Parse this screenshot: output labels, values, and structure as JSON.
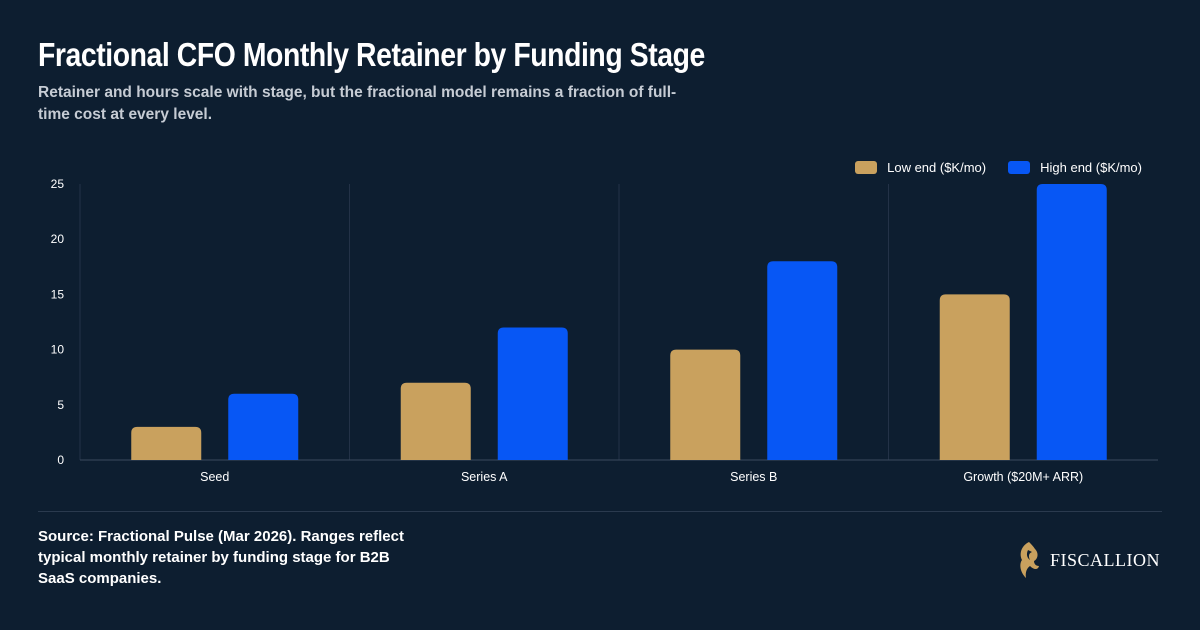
{
  "title": "Fractional CFO Monthly Retainer by Funding Stage",
  "subtitle": "Retainer and hours scale with stage, but the fractional model remains a fraction of full-time cost at every level.",
  "source": "Source: Fractional Pulse (Mar 2026). Ranges reflect typical monthly retainer by funding stage for B2B SaaS companies.",
  "brand": {
    "name": "FISCALLION",
    "icon": "lion-head-logo"
  },
  "colors": {
    "background": "#0d1e30",
    "low": "#c9a15e",
    "high": "#0757f5",
    "grid": "#233247",
    "axis_text": "#ffffff"
  },
  "chart_data": {
    "type": "bar",
    "categories": [
      "Seed",
      "Series A",
      "Series B",
      "Growth ($20M+ ARR)"
    ],
    "series": [
      {
        "name": "Low end ($K/mo)",
        "values": [
          3,
          7,
          10,
          15
        ]
      },
      {
        "name": "High end ($K/mo)",
        "values": [
          6,
          12,
          18,
          25
        ]
      }
    ],
    "yticks": [
      0,
      5,
      10,
      15,
      20,
      25
    ],
    "ylim": [
      0,
      25
    ],
    "grid": "vertical category separators",
    "legend_position": "top-right"
  }
}
